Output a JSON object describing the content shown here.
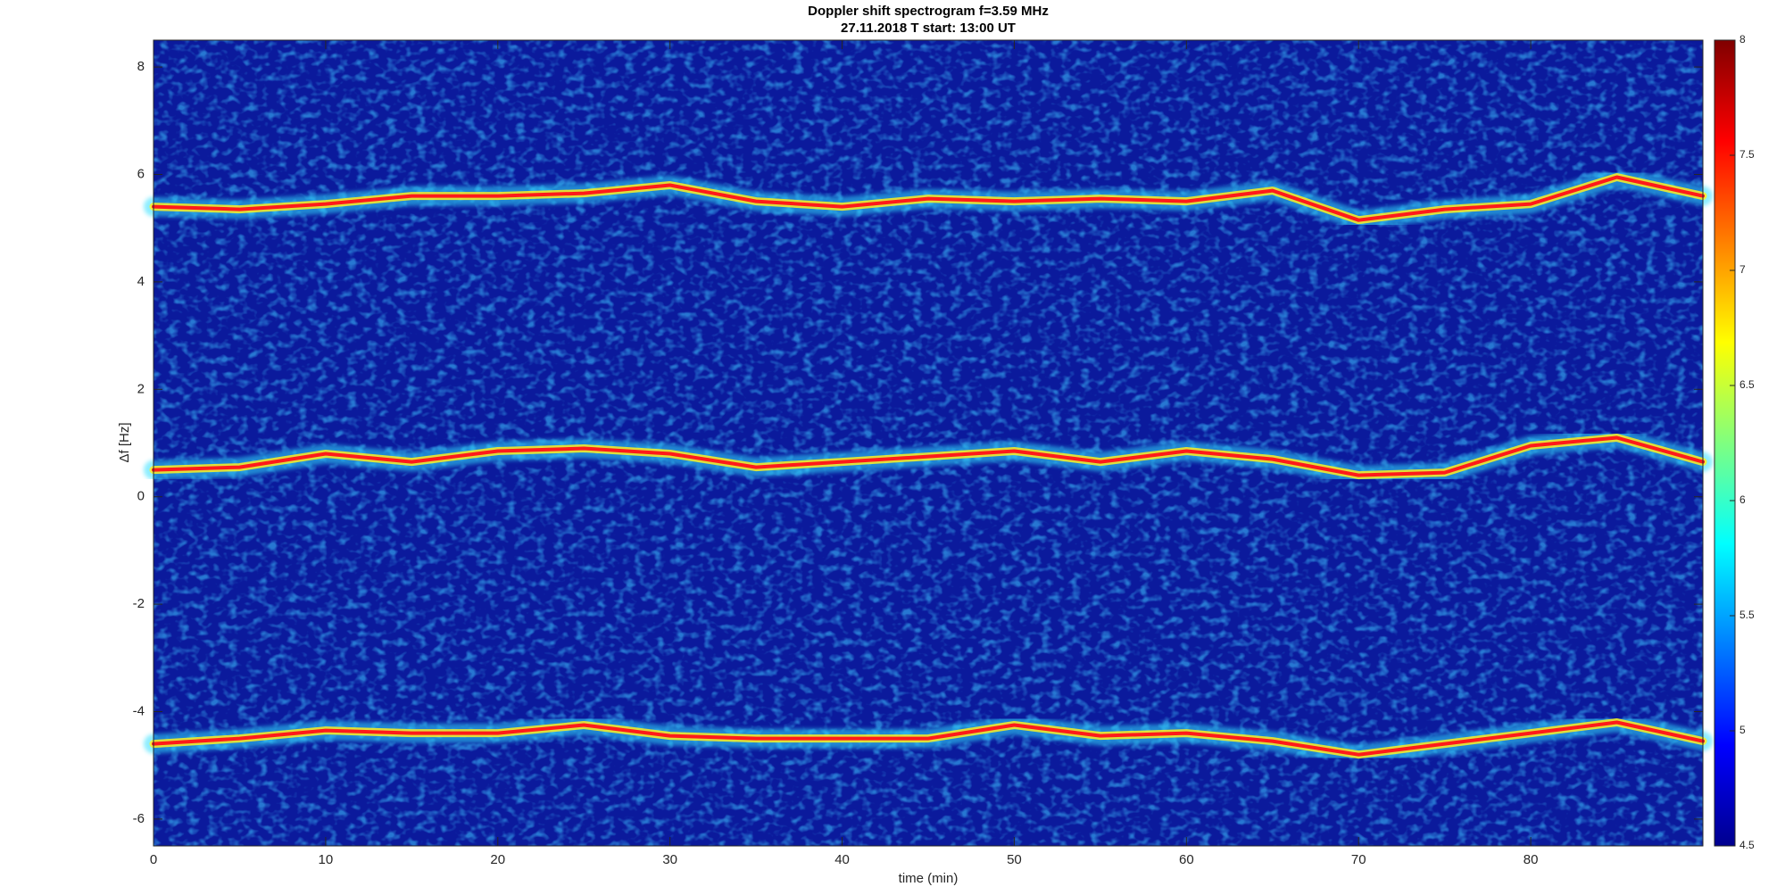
{
  "chart_data": {
    "type": "spectrogram",
    "title": "Doppler shift spectrogram f=3.59 MHz",
    "subtitle": "27.11.2018   T start: 13:00 UT",
    "x_label": "time (min)",
    "y_label": "Δf [Hz]",
    "xlim": [
      0,
      90
    ],
    "xticks": [
      0,
      10,
      20,
      30,
      40,
      50,
      60,
      70,
      80
    ],
    "ylim": [
      -6.5,
      8.5
    ],
    "yticks": [
      -6,
      -4,
      -2,
      0,
      2,
      4,
      6,
      8
    ],
    "clim": [
      4.5,
      8
    ],
    "cticks": [
      4.5,
      5,
      5.5,
      6,
      6.5,
      7,
      7.5,
      8
    ],
    "colormap": "jet",
    "grid": false,
    "x": [
      0,
      5,
      10,
      15,
      20,
      25,
      30,
      35,
      40,
      45,
      50,
      55,
      60,
      65,
      70,
      75,
      80,
      85,
      90
    ],
    "series": [
      {
        "color": "#ff1a1a",
        "values": [
          5.4,
          5.35,
          5.45,
          5.6,
          5.6,
          5.65,
          5.8,
          5.5,
          5.4,
          5.55,
          5.5,
          5.55,
          5.5,
          5.7,
          5.15,
          5.35,
          5.45,
          5.95,
          5.6
        ]
      },
      {
        "color": "#ff1a1a",
        "values": [
          0.5,
          0.55,
          0.8,
          0.65,
          0.85,
          0.9,
          0.8,
          0.55,
          0.65,
          0.75,
          0.85,
          0.65,
          0.85,
          0.7,
          0.4,
          0.45,
          0.95,
          1.1,
          0.65
        ]
      },
      {
        "color": "#ff1a1a",
        "values": [
          -4.6,
          -4.5,
          -4.35,
          -4.4,
          -4.4,
          -4.25,
          -4.45,
          -4.5,
          -4.5,
          -4.5,
          -4.25,
          -4.45,
          -4.4,
          -4.55,
          -4.8,
          -4.6,
          -4.4,
          -4.2,
          -4.55
        ]
      }
    ]
  }
}
